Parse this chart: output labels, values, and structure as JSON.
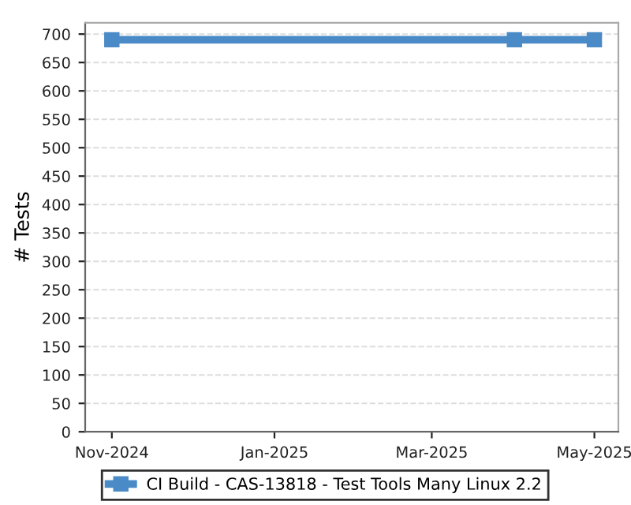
{
  "chart_data": {
    "type": "line",
    "ylabel": "# Tests",
    "x": [
      "2024-11-01",
      "2025-04-01",
      "2025-05-01"
    ],
    "series": [
      {
        "name": "CI Build - CAS-13818 - Test Tools Many Linux 2.2",
        "color": "#4a8bc7",
        "values": [
          690,
          690,
          690
        ]
      }
    ],
    "xlim": [
      "2024-10-22",
      "2025-05-10"
    ],
    "xticks": [
      {
        "value": "2024-11-01",
        "label": "Nov-2024"
      },
      {
        "value": "2025-01-01",
        "label": "Jan-2025"
      },
      {
        "value": "2025-03-01",
        "label": "Mar-2025"
      },
      {
        "value": "2025-05-01",
        "label": "May-2025"
      }
    ],
    "ylim": [
      0,
      720
    ],
    "yticks": [
      0,
      50,
      100,
      150,
      200,
      250,
      300,
      350,
      400,
      450,
      500,
      550,
      600,
      650,
      700
    ],
    "grid": "y",
    "legend": "bottom",
    "marker": "square",
    "line_style": "solid"
  }
}
